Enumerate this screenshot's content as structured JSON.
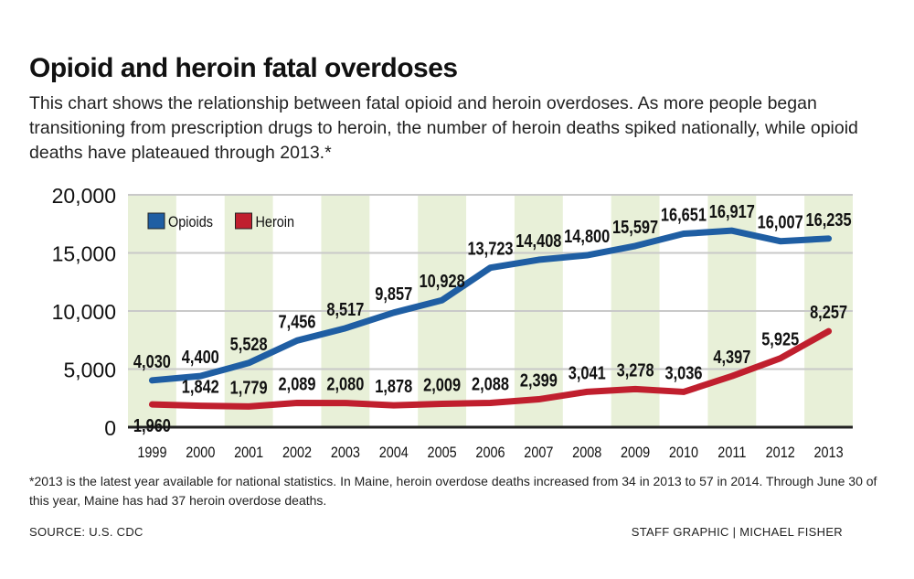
{
  "chart_data": {
    "type": "line",
    "title": "Opioid and heroin fatal overdoses",
    "subtitle": "This chart shows the relationship between fatal opioid and heroin overdoses. As more people began transitioning from prescription drugs to heroin, the number of heroin deaths spiked nationally, while opioid deaths have plateaued through 2013.*",
    "x": [
      "1999",
      "2000",
      "2001",
      "2002",
      "2003",
      "2004",
      "2005",
      "2006",
      "2007",
      "2008",
      "2009",
      "2010",
      "2011",
      "2012",
      "2013"
    ],
    "series": [
      {
        "name": "Opioids",
        "color": "#1f5ea3",
        "values": [
          4030,
          4400,
          5528,
          7456,
          8517,
          9857,
          10928,
          13723,
          14408,
          14800,
          15597,
          16651,
          16917,
          16007,
          16235
        ],
        "labels": [
          "4,030",
          "4,400",
          "5,528",
          "7,456",
          "8,517",
          "9,857",
          "10,928",
          "13,723",
          "14,408",
          "14,800",
          "15,597",
          "16,651",
          "16,917",
          "16,007",
          "16,235"
        ]
      },
      {
        "name": "Heroin",
        "color": "#c01f2e",
        "values": [
          1960,
          1842,
          1779,
          2089,
          2080,
          1878,
          2009,
          2088,
          2399,
          3041,
          3278,
          3036,
          4397,
          5925,
          8257
        ],
        "labels": [
          "1,960",
          "1,842",
          "1,779",
          "2,089",
          "2,080",
          "1,878",
          "2,009",
          "2,088",
          "2,399",
          "3,041",
          "3,278",
          "3,036",
          "4,397",
          "5,925",
          "8,257"
        ]
      }
    ],
    "ylim": [
      0,
      20000
    ],
    "yticks": [
      0,
      5000,
      10000,
      15000,
      20000
    ],
    "ytick_labels": [
      "0",
      "5,000",
      "10,000",
      "15,000",
      "20,000"
    ],
    "grid": true,
    "legend_placement": "top-left",
    "band_color": "#e8f0d8"
  },
  "footnote": "*2013 is the latest year available for national statistics. In Maine, heroin overdose deaths increased from 34 in 2013 to 57 in 2014. Through June 30 of this year, Maine has had 37 heroin overdose deaths.",
  "source": "SOURCE: U.S. CDC",
  "credit": "STAFF GRAPHIC | MICHAEL FISHER"
}
